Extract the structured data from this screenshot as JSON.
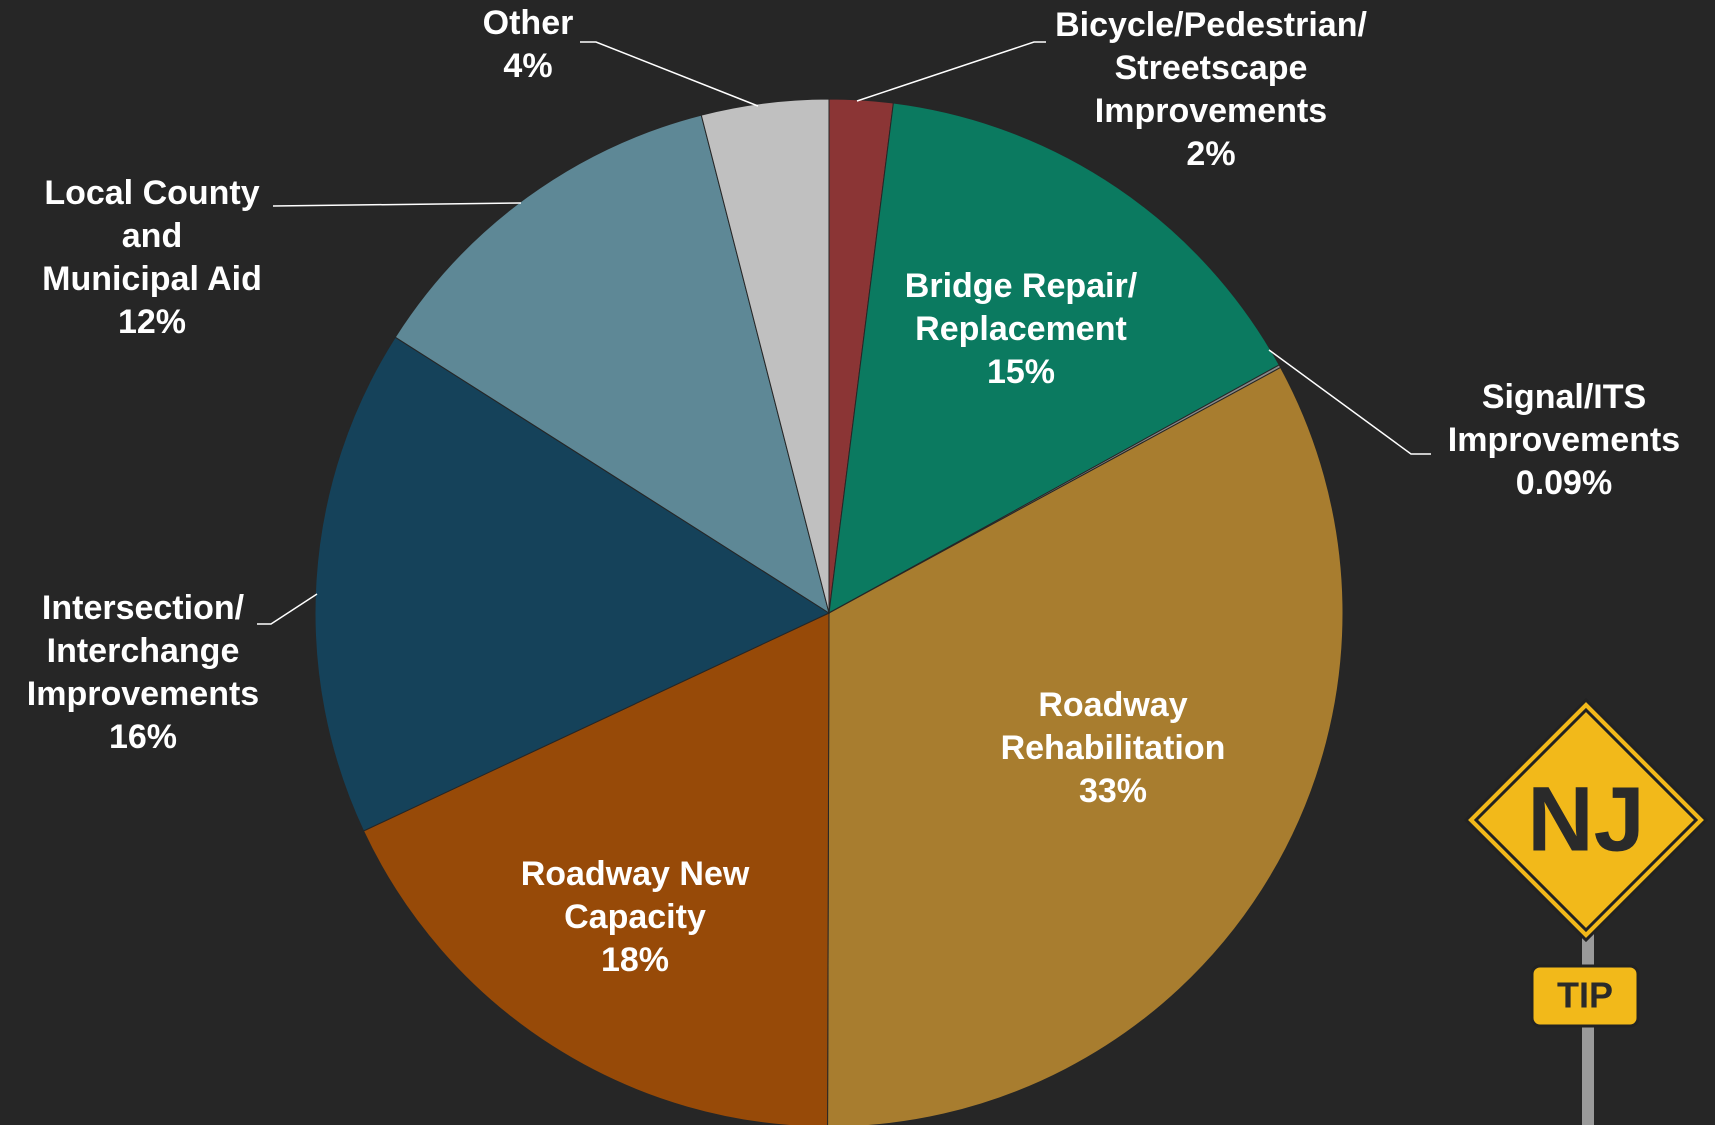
{
  "chart_data": {
    "type": "pie",
    "categories": [
      [
        "Bicycle/Pedestrian/",
        "Streetscape",
        "Improvements"
      ],
      [
        "Bridge Repair/",
        "Replacement"
      ],
      [
        "Signal/ITS",
        "Improvements"
      ],
      [
        "Roadway",
        "Rehabilitation"
      ],
      [
        "Roadway New",
        "Capacity"
      ],
      [
        "Intersection/",
        "Interchange",
        "Improvements"
      ],
      [
        "Local County",
        "and",
        "Municipal Aid"
      ],
      [
        "Other"
      ]
    ],
    "values": [
      2,
      15,
      0.09,
      33,
      18,
      16,
      12,
      4
    ],
    "value_labels": [
      "2%",
      "15%",
      "0.09%",
      "33%",
      "18%",
      "16%",
      "12%",
      "4%"
    ],
    "colors": [
      "#8b3535",
      "#0b7a60",
      "#8a8a8a",
      "#a87d2f",
      "#974a08",
      "#15425a",
      "#5e8896",
      "#c0c0c0"
    ]
  },
  "sign": {
    "title": "NJ",
    "subtitle": "TIP"
  }
}
